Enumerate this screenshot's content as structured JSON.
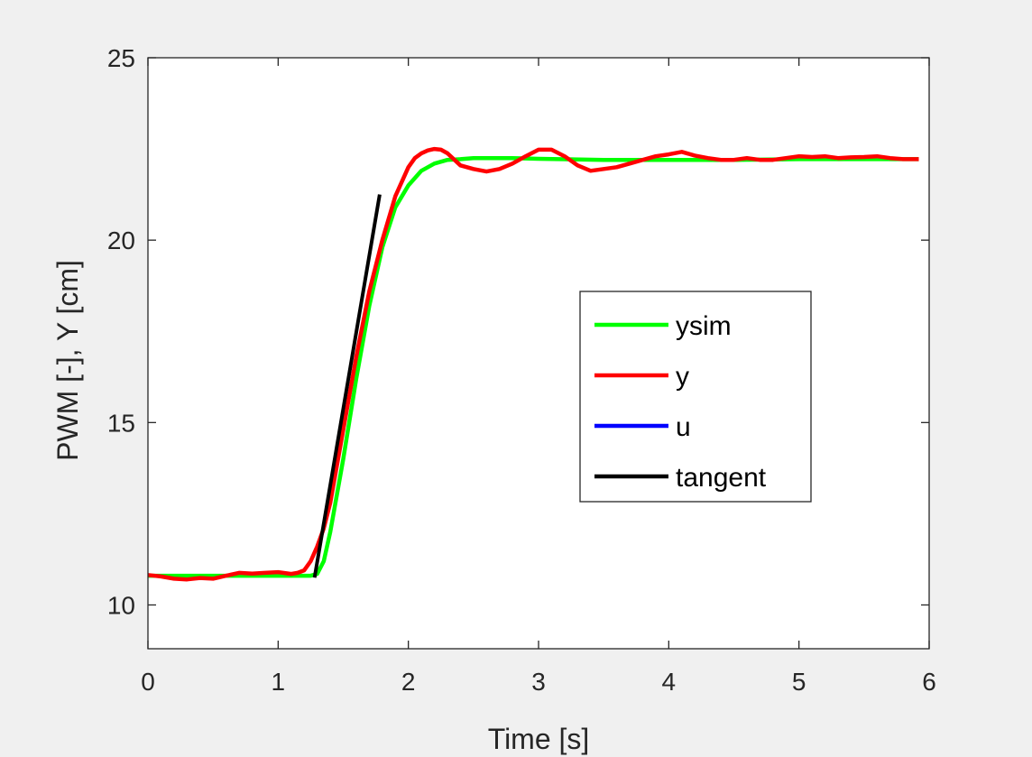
{
  "chart_data": {
    "type": "line",
    "title": "",
    "xlabel": "Time [s]",
    "ylabel": "PWM [-], Y [cm]",
    "xlim": [
      0,
      6
    ],
    "ylim": [
      8.8,
      25
    ],
    "xticks": [
      0,
      1,
      2,
      3,
      4,
      5,
      6
    ],
    "yticks": [
      10,
      15,
      20,
      25
    ],
    "grid": false,
    "legend_location": "east",
    "series": [
      {
        "name": "ysim",
        "color": "#00ff00",
        "x": [
          0,
          0.5,
          1.0,
          1.2,
          1.25,
          1.3,
          1.35,
          1.4,
          1.5,
          1.6,
          1.7,
          1.8,
          1.9,
          2.0,
          2.1,
          2.2,
          2.3,
          2.4,
          2.5,
          2.6,
          2.8,
          3.0,
          3.5,
          4.0,
          4.5,
          5.0,
          5.5,
          5.92
        ],
        "y": [
          10.8,
          10.8,
          10.8,
          10.8,
          10.8,
          10.85,
          11.2,
          12.0,
          14.0,
          16.2,
          18.2,
          19.8,
          20.9,
          21.5,
          21.9,
          22.1,
          22.2,
          22.22,
          22.25,
          22.25,
          22.25,
          22.23,
          22.2,
          22.2,
          22.2,
          22.22,
          22.22,
          22.22
        ]
      },
      {
        "name": "y",
        "color": "#ff0000",
        "x": [
          0,
          0.1,
          0.2,
          0.3,
          0.4,
          0.5,
          0.6,
          0.7,
          0.8,
          0.9,
          1.0,
          1.1,
          1.15,
          1.2,
          1.25,
          1.3,
          1.35,
          1.4,
          1.5,
          1.6,
          1.7,
          1.8,
          1.9,
          2.0,
          2.05,
          2.1,
          2.15,
          2.2,
          2.25,
          2.3,
          2.4,
          2.5,
          2.6,
          2.7,
          2.8,
          2.9,
          3.0,
          3.1,
          3.2,
          3.3,
          3.4,
          3.5,
          3.6,
          3.7,
          3.8,
          3.9,
          4.0,
          4.1,
          4.2,
          4.3,
          4.4,
          4.5,
          4.6,
          4.7,
          4.8,
          4.9,
          5.0,
          5.1,
          5.2,
          5.3,
          5.4,
          5.5,
          5.6,
          5.7,
          5.8,
          5.92
        ],
        "y": [
          10.82,
          10.78,
          10.72,
          10.7,
          10.74,
          10.72,
          10.8,
          10.88,
          10.86,
          10.88,
          10.9,
          10.85,
          10.88,
          10.95,
          11.2,
          11.6,
          12.1,
          12.8,
          14.8,
          16.8,
          18.6,
          20.0,
          21.2,
          22.0,
          22.25,
          22.38,
          22.46,
          22.5,
          22.48,
          22.38,
          22.05,
          21.95,
          21.88,
          21.95,
          22.1,
          22.3,
          22.48,
          22.48,
          22.3,
          22.05,
          21.9,
          21.95,
          22.0,
          22.1,
          22.2,
          22.3,
          22.35,
          22.42,
          22.32,
          22.25,
          22.2,
          22.2,
          22.25,
          22.2,
          22.2,
          22.25,
          22.3,
          22.28,
          22.3,
          22.25,
          22.27,
          22.28,
          22.3,
          22.25,
          22.22,
          22.22
        ]
      },
      {
        "name": "u",
        "color": "#0000ff",
        "x": [],
        "y": []
      },
      {
        "name": "tangent",
        "color": "#000000",
        "x": [
          1.28,
          1.78
        ],
        "y": [
          10.75,
          21.25
        ]
      }
    ]
  }
}
